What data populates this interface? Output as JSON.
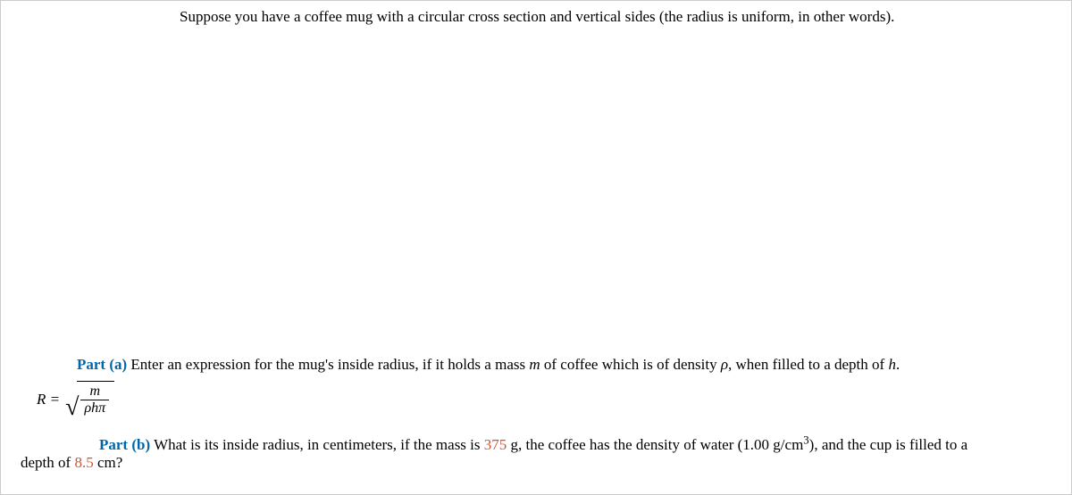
{
  "intro": {
    "text": "Suppose you have a coffee mug with a circular cross section and vertical sides (the radius is uniform, in other words)."
  },
  "partA": {
    "label": "Part (a)",
    "prompt_1": "Enter an expression for the mug's inside radius, if it holds a mass ",
    "mass_var": "m",
    "prompt_2": " of coffee which is of density ",
    "rho_var": "ρ",
    "prompt_3": ", when filled to a depth of ",
    "h_var": "h",
    "prompt_4": "."
  },
  "equation": {
    "lhs": "R = ",
    "numerator": "m",
    "denominator": "ρhπ"
  },
  "partB": {
    "label": "Part (b)",
    "prompt_1": "What is its inside radius, in centimeters, if the mass is ",
    "mass_value": "375",
    "prompt_2": " g, the coffee has the density of water (1.00 g/cm",
    "exponent": "3",
    "prompt_3": "), and the cup is filled to a",
    "line2_1": "depth of ",
    "depth_value": "8.5",
    "line2_2": " cm?"
  },
  "colors": {
    "part_label": "#0066aa",
    "highlight_number": "#cc5533",
    "text": "#000000",
    "background": "#ffffff"
  }
}
